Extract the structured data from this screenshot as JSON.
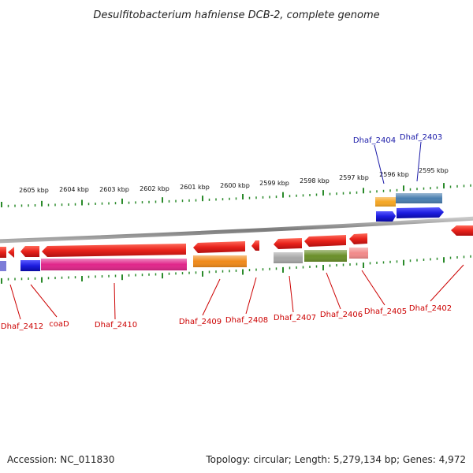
{
  "title": "Desulfitobacterium hafniense DCB-2, complete genome",
  "footer": {
    "accession": "Accession: NC_011830",
    "topology": "Topology: circular; Length: 5,279,134 bp; Genes: 4,972"
  },
  "colors": {
    "forward_gene": "#e8221b",
    "reverse_gene": "#e8221b",
    "upper_gene_label": "#1a1aa8",
    "lower_gene_label": "#cc0000",
    "leader_line_upper": "#1a1aa8",
    "leader_line_lower": "#cc0000",
    "tick": "#2a8a2a",
    "backbone": "#8a8a8a"
  },
  "ruler_labels": [
    "2605 kbp",
    "2604 kbp",
    "2603 kbp",
    "2602 kbp",
    "2601 kbp",
    "2600 kbp",
    "2599 kbp",
    "2598 kbp",
    "2597 kbp",
    "2596 kbp",
    "2595 kbp"
  ],
  "upper_genes": [
    "Dhaf_2404",
    "Dhaf_2403"
  ],
  "lower_genes": [
    "Dhaf_2412",
    "coaD",
    "Dhaf_2410",
    "Dhaf_2409",
    "Dhaf_2408",
    "Dhaf_2407",
    "Dhaf_2406",
    "Dhaf_2405",
    "Dhaf_2402"
  ],
  "feature_bar_colors": {
    "Dhaf_2404_a": "#f5a623",
    "Dhaf_2404_b": "#1d1de0",
    "Dhaf_2403_a": "#4a7fb0",
    "Dhaf_2403_b": "#1d1de0",
    "Dhaf_2412": "#7d7dd8",
    "coaD": "#1d1de0",
    "Dhaf_2410": "#e0268a",
    "Dhaf_2409": "#f08a1a",
    "Dhaf_2407": "#a8a8a8",
    "Dhaf_2406": "#6a8f2a",
    "Dhaf_2405": "#f28a8a"
  }
}
